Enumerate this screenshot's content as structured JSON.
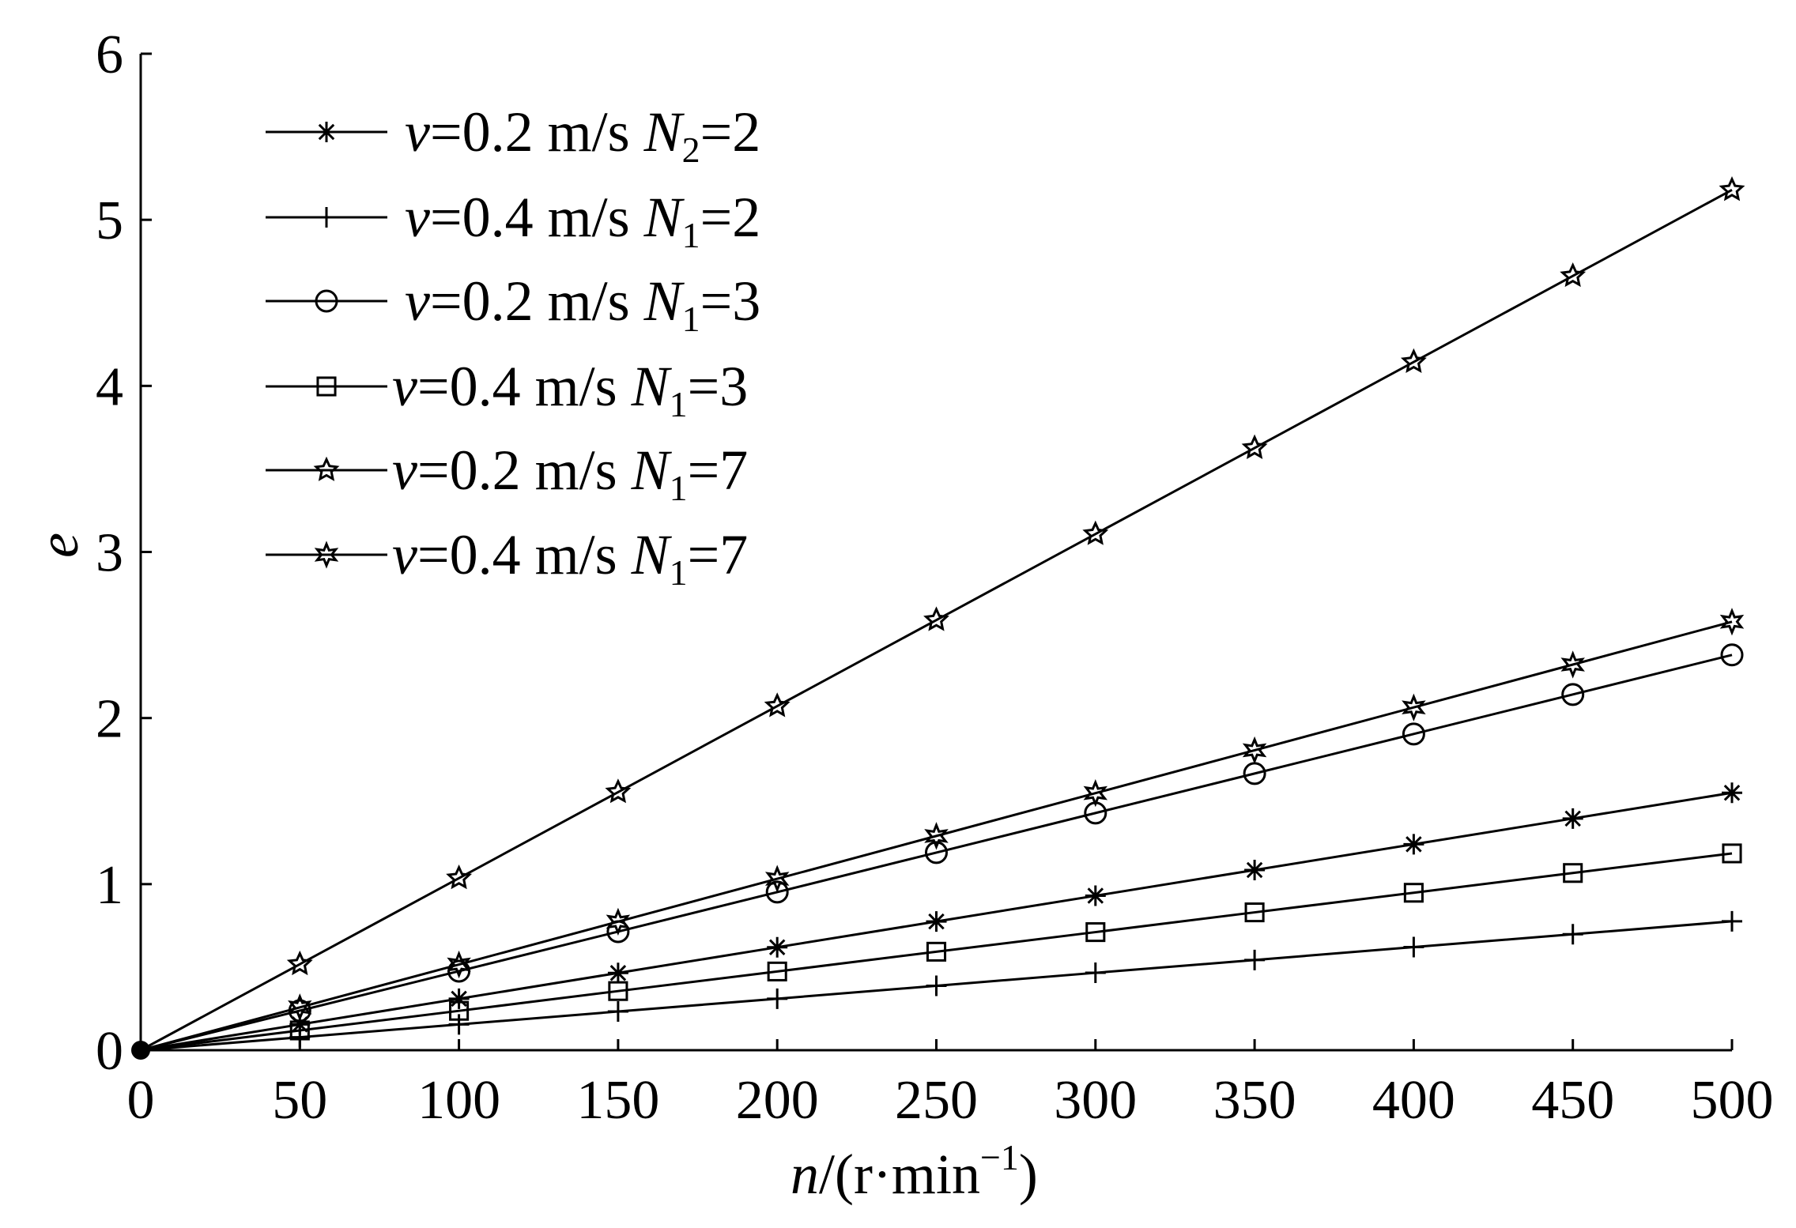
{
  "chart_data": {
    "type": "line",
    "title": "",
    "xlabel": "n/(r·min⁻¹)",
    "xlabel_parts": {
      "var": "n",
      "rest": "/(r·min",
      "sup": "−1",
      "close": ")"
    },
    "ylabel": "e",
    "xlim": [
      0,
      500
    ],
    "ylim": [
      0,
      6
    ],
    "xticks": [
      0,
      50,
      100,
      150,
      200,
      250,
      300,
      350,
      400,
      450,
      500
    ],
    "yticks": [
      0,
      1,
      2,
      3,
      4,
      5,
      6
    ],
    "grid": false,
    "legend_placement": "top-left",
    "x": [
      0,
      50,
      100,
      150,
      200,
      250,
      300,
      350,
      400,
      450,
      500
    ],
    "series": [
      {
        "name": "v=0.2 m/s N2=2",
        "label": {
          "v": "v",
          "speed": "=0.2 m/s ",
          "N": "N",
          "sub": "2",
          "eq": "=2"
        },
        "marker": "asterisk",
        "values": [
          0,
          0.155,
          0.31,
          0.465,
          0.62,
          0.775,
          0.93,
          1.085,
          1.24,
          1.395,
          1.55
        ]
      },
      {
        "name": "v=0.4 m/s N1=2",
        "label": {
          "v": "v",
          "speed": "=0.4 m/s ",
          "N": "N",
          "sub": "1",
          "eq": "=2"
        },
        "marker": "plus",
        "values": [
          0,
          0.078,
          0.155,
          0.233,
          0.31,
          0.388,
          0.466,
          0.543,
          0.621,
          0.698,
          0.776
        ]
      },
      {
        "name": "v=0.2 m/s N1=3",
        "label": {
          "v": "v",
          "speed": "=0.2 m/s ",
          "N": "N",
          "sub": "1",
          "eq": "=3"
        },
        "marker": "circle",
        "values": [
          0,
          0.238,
          0.476,
          0.714,
          0.952,
          1.19,
          1.428,
          1.666,
          1.904,
          2.142,
          2.38
        ]
      },
      {
        "name": "v=0.4 m/s N1=3",
        "label": {
          "v": "v",
          "speed": "=0.4 m/s ",
          "N": "N",
          "sub": "1",
          "eq": "=3"
        },
        "marker": "square",
        "values": [
          0,
          0.119,
          0.237,
          0.356,
          0.474,
          0.593,
          0.711,
          0.83,
          0.948,
          1.067,
          1.185
        ]
      },
      {
        "name": "v=0.2 m/s N1=7",
        "label": {
          "v": "v",
          "speed": "=0.2 m/s ",
          "N": "N",
          "sub": "1",
          "eq": "=7"
        },
        "marker": "star",
        "values": [
          0,
          0.518,
          1.036,
          1.554,
          2.072,
          2.59,
          3.108,
          3.626,
          4.144,
          4.662,
          5.18
        ]
      },
      {
        "name": "v=0.4 m/s N1=7",
        "label": {
          "v": "v",
          "speed": "=0.4 m/s ",
          "N": "N",
          "sub": "1",
          "eq": "=7"
        },
        "marker": "hexagon",
        "values": [
          0,
          0.258,
          0.516,
          0.774,
          1.032,
          1.29,
          1.548,
          1.806,
          2.064,
          2.322,
          2.58
        ]
      }
    ]
  }
}
